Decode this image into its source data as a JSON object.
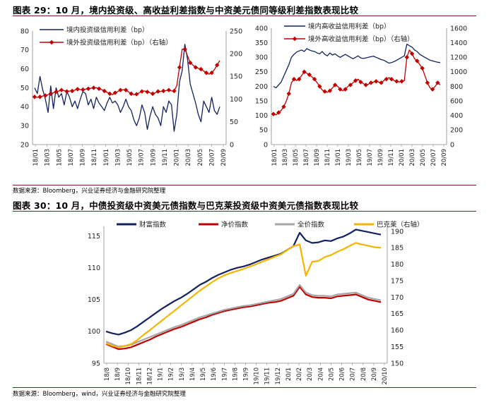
{
  "fig29": {
    "title": "图表 29：10 月，境内投资级、高收益利差指数与中资美元债同等级利差指数表现比较",
    "source": "数据来源：Bloomberg，兴业证券经济与金融研究院整理"
  },
  "fig30": {
    "title": "图表 30：10 月，中债投资级中资美元债指数与巴克莱投资级中资美元债指数表现比较",
    "source": "数据来源：Bloomberg，wind，兴业证券经济与金融研究院整理"
  },
  "chart_data": [
    {
      "type": "line",
      "x_ticks": [
        "18/01",
        "18/03",
        "18/05",
        "18/07",
        "18/09",
        "18/11",
        "19/01",
        "19/03",
        "19/05",
        "19/07",
        "19/09",
        "19/11",
        "20/01",
        "20/03",
        "20/05",
        "20/07",
        "20/09"
      ],
      "ylim": [
        20,
        80
      ],
      "yticks": [
        "20",
        "30",
        "40",
        "50",
        "60",
        "70",
        "80"
      ],
      "ylim_right": [
        0,
        250
      ],
      "yticks_right": [
        "0",
        "50",
        "100",
        "150",
        "200",
        "250"
      ],
      "series": [
        {
          "name": "境内投资级信用利差（bp）",
          "axis": "left",
          "color": "#13225e",
          "values": [
            50,
            47,
            56,
            49,
            44,
            37,
            51,
            39,
            50,
            45,
            47,
            41,
            48,
            45,
            40,
            43,
            39,
            44,
            48,
            47,
            41,
            44,
            39,
            45,
            42,
            40,
            38,
            42,
            45,
            42,
            43,
            41,
            37,
            40,
            44,
            40,
            38,
            33,
            30,
            34,
            41,
            37,
            28,
            35,
            40,
            36,
            34,
            30,
            40,
            37,
            43,
            41,
            27,
            36,
            53,
            59,
            73,
            65,
            52,
            47,
            42,
            36,
            32,
            43,
            40,
            37,
            45,
            38,
            36,
            40
          ]
        },
        {
          "name": "境外投资级信用利差（bp）（右轴）",
          "axis": "right",
          "color": "#c00000",
          "values": [
            105,
            104,
            105,
            107,
            108,
            110,
            112,
            114,
            116,
            118,
            120,
            119,
            117,
            118,
            118,
            120,
            122,
            121,
            121,
            122,
            123,
            124,
            125,
            125,
            123,
            121,
            118,
            115,
            112,
            110,
            114,
            117,
            120,
            121,
            120,
            116,
            112,
            110,
            111,
            114,
            117,
            118,
            116,
            114,
            112,
            114,
            117,
            117,
            118,
            119,
            120,
            118,
            118,
            130,
            170,
            210,
            210,
            195,
            180,
            175,
            170,
            168,
            166,
            162,
            158,
            155,
            158,
            165,
            175,
            185
          ]
        }
      ]
    },
    {
      "type": "line",
      "x_ticks": [
        "18/01",
        "18/03",
        "18/05",
        "18/07",
        "18/09",
        "18/11",
        "19/01",
        "19/03",
        "19/05",
        "19/07",
        "19/09",
        "19/11",
        "20/01",
        "20/03",
        "20/05",
        "20/07",
        "20/09"
      ],
      "ylim": [
        0,
        400
      ],
      "yticks": [
        "0",
        "50",
        "100",
        "150",
        "200",
        "250",
        "300",
        "350",
        "400"
      ],
      "ylim_right": [
        0,
        1600
      ],
      "yticks_right": [
        "0",
        "200",
        "400",
        "600",
        "800",
        "1000",
        "1200",
        "1400",
        "1600"
      ],
      "series": [
        {
          "name": "境内高收益信用利差（bp）",
          "axis": "left",
          "color": "#13225e",
          "values": [
            200,
            195,
            205,
            215,
            235,
            255,
            275,
            300,
            310,
            318,
            322,
            325,
            320,
            330,
            325,
            322,
            320,
            315,
            312,
            320,
            310,
            305,
            315,
            308,
            312,
            305,
            300,
            305,
            310,
            305,
            300,
            295,
            300,
            305,
            298,
            296,
            298,
            300,
            302,
            304,
            300,
            296,
            292,
            290,
            285,
            280,
            282,
            285,
            290,
            295,
            300,
            305,
            345,
            340,
            335,
            325,
            320,
            310,
            305,
            300,
            295,
            290,
            288,
            285,
            283,
            282
          ]
        },
        {
          "name": "境外高收益信用利差（bp）（右轴）",
          "axis": "right",
          "color": "#c00000",
          "values": [
            420,
            410,
            440,
            470,
            520,
            600,
            700,
            850,
            900,
            880,
            900,
            950,
            1000,
            980,
            960,
            930,
            900,
            850,
            800,
            750,
            730,
            720,
            740,
            780,
            820,
            800,
            760,
            740,
            760,
            800,
            820,
            850,
            880,
            900,
            860,
            840,
            820,
            830,
            850,
            860,
            870,
            860,
            850,
            880,
            900,
            920,
            900,
            880,
            870,
            860,
            870,
            880,
            1200,
            1300,
            1250,
            1180,
            1150,
            1100,
            1050,
            950,
            850,
            780,
            760,
            800,
            850,
            820
          ]
        }
      ]
    },
    {
      "type": "line",
      "x_ticks": [
        "18/8",
        "18/9",
        "18/10",
        "18/11",
        "18/12",
        "19/1",
        "19/2",
        "19/3",
        "19/4",
        "19/5",
        "19/6",
        "19/7",
        "19/8",
        "19/9",
        "19/10",
        "19/11",
        "19/12",
        "20/1",
        "20/2",
        "20/3",
        "20/4",
        "20/5",
        "20/6",
        "20/7",
        "20/8",
        "20/9",
        "20/10"
      ],
      "ylim": [
        95,
        116.5
      ],
      "yticks": [
        "95",
        "100",
        "105",
        "110",
        "115"
      ],
      "ylim_right": [
        150,
        191.5
      ],
      "yticks_right": [
        "150",
        "155",
        "160",
        "165",
        "170",
        "175",
        "180",
        "185",
        "190"
      ],
      "series": [
        {
          "name": "财富指数",
          "axis": "left",
          "color": "#13225e",
          "values": [
            100.0,
            99.7,
            99.5,
            99.8,
            100.2,
            100.8,
            101.5,
            102.2,
            102.9,
            103.6,
            104.2,
            104.8,
            105.3,
            105.9,
            106.6,
            107.3,
            107.8,
            108.4,
            108.9,
            109.3,
            109.7,
            110.0,
            110.2,
            110.5,
            110.9,
            111.3,
            111.6,
            111.9,
            112.2,
            112.8,
            113.4,
            115.5,
            114.3,
            113.9,
            114.0,
            114.3,
            114.2,
            114.6,
            114.9,
            115.4,
            116.0,
            115.8,
            115.6,
            115.4,
            115.2
          ]
        },
        {
          "name": "净价指数",
          "axis": "left",
          "color": "#c00000",
          "values": [
            98.0,
            97.6,
            97.2,
            97.3,
            97.5,
            97.9,
            98.3,
            98.7,
            99.2,
            99.6,
            100.0,
            100.4,
            100.7,
            101.1,
            101.5,
            101.9,
            102.2,
            102.6,
            102.9,
            103.2,
            103.4,
            103.6,
            103.8,
            103.9,
            104.1,
            104.3,
            104.5,
            104.6,
            104.8,
            105.2,
            105.6,
            107.0,
            105.8,
            105.4,
            105.3,
            105.3,
            105.2,
            105.5,
            105.6,
            105.7,
            105.8,
            105.4,
            105.0,
            104.8,
            104.6
          ]
        },
        {
          "name": "全价指数",
          "axis": "left",
          "color": "#a6a6a6",
          "values": [
            98.4,
            98.0,
            97.6,
            97.7,
            97.9,
            98.3,
            98.7,
            99.1,
            99.5,
            99.9,
            100.3,
            100.7,
            101.0,
            101.4,
            101.8,
            102.2,
            102.5,
            102.8,
            103.1,
            103.4,
            103.6,
            103.8,
            104.0,
            104.1,
            104.3,
            104.5,
            104.7,
            104.9,
            105.1,
            105.5,
            105.9,
            107.3,
            106.1,
            105.7,
            105.6,
            105.6,
            105.5,
            105.8,
            105.9,
            106.0,
            106.1,
            105.7,
            105.3,
            105.1,
            104.9
          ]
        },
        {
          "name": "巴克莱（右轴）",
          "axis": "right",
          "color": "#f5b400",
          "values": [
            156.0,
            155.3,
            154.8,
            155.2,
            155.8,
            157.0,
            158.6,
            160.0,
            161.5,
            163.0,
            164.5,
            166.0,
            167.5,
            169.0,
            170.5,
            172.0,
            173.3,
            174.6,
            175.8,
            176.7,
            177.4,
            178.0,
            178.6,
            179.3,
            180.0,
            180.8,
            181.5,
            182.3,
            183.0,
            184.3,
            185.5,
            186.0,
            176.5,
            180.8,
            181.0,
            182.2,
            182.8,
            183.8,
            184.6,
            185.6,
            186.5,
            186.0,
            185.6,
            185.2,
            185.0
          ]
        }
      ]
    }
  ]
}
